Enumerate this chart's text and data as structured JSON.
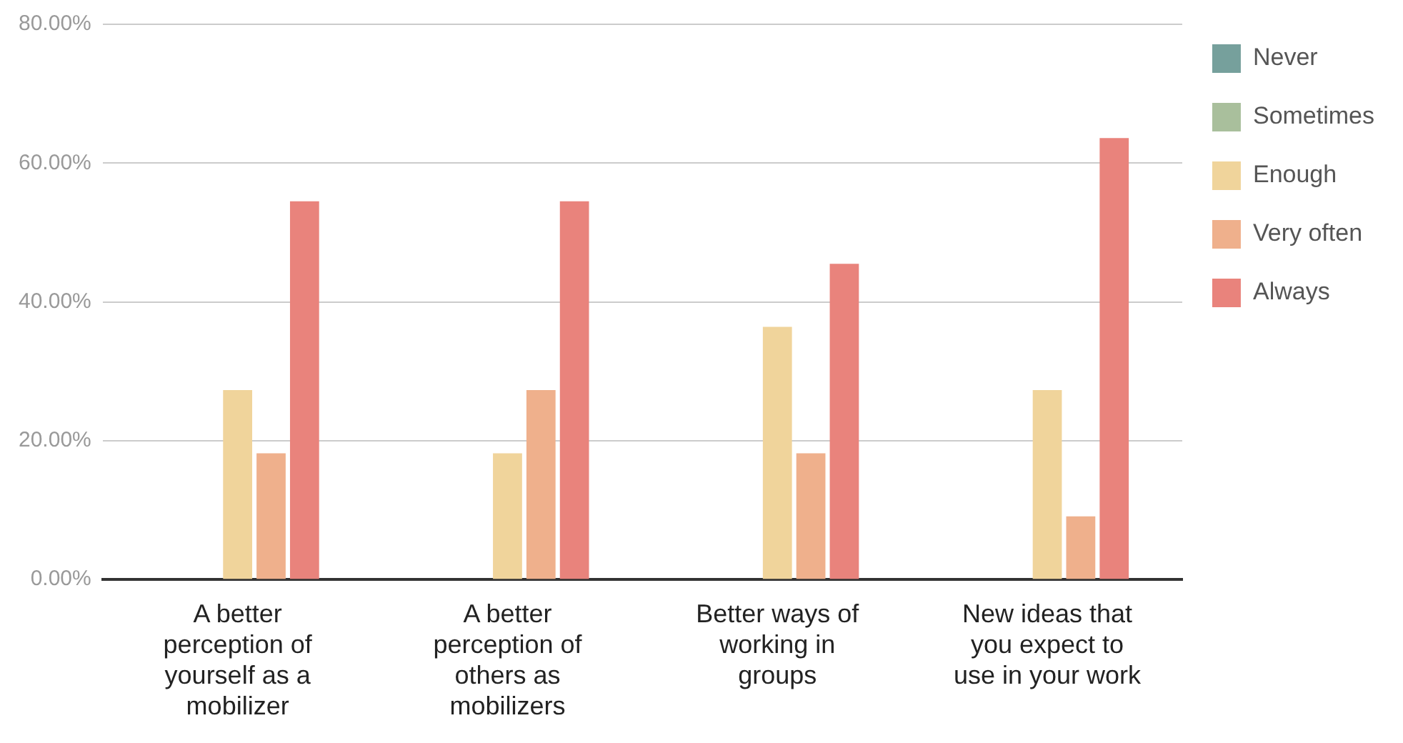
{
  "chart_data": {
    "type": "bar",
    "categories": [
      "A better perception of yourself as a mobilizer",
      "A better perception of others as mobilizers",
      "Better ways of working in groups",
      "New ideas that you expect to use in your work"
    ],
    "series": [
      {
        "name": "Never",
        "color": "#76a09c",
        "values": [
          0,
          0,
          0,
          0
        ]
      },
      {
        "name": "Sometimes",
        "color": "#a9bf9c",
        "values": [
          0,
          0,
          0,
          0
        ]
      },
      {
        "name": "Enough",
        "color": "#f0d49b",
        "values": [
          27.3,
          18.2,
          36.4,
          27.3
        ]
      },
      {
        "name": "Very often",
        "color": "#efb08c",
        "values": [
          18.2,
          27.3,
          18.2,
          9.1
        ]
      },
      {
        "name": "Always",
        "color": "#e9837c",
        "values": [
          54.5,
          54.5,
          45.5,
          63.6
        ]
      }
    ],
    "ylim": [
      0,
      80
    ],
    "yticks": [
      {
        "value": 0,
        "label": "0.00%"
      },
      {
        "value": 20,
        "label": "20.00%"
      },
      {
        "value": 40,
        "label": "40.00%"
      },
      {
        "value": 60,
        "label": "60.00%"
      },
      {
        "value": 80,
        "label": "80.00%"
      }
    ],
    "grid": "y",
    "legend": "top right"
  }
}
